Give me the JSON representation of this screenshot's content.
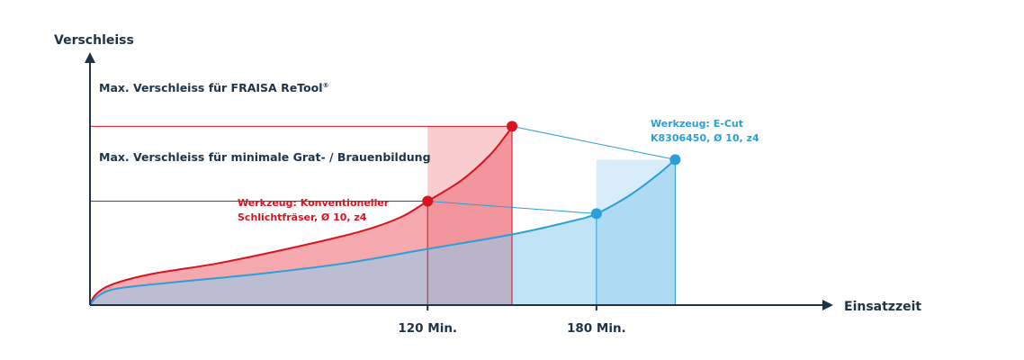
{
  "chart_data": {
    "type": "area",
    "ylabel": "Verschleiss",
    "xlabel": "Einsatzzeit",
    "x_ticks": [
      "120 Min.",
      "180 Min."
    ],
    "reference_lines": [
      {
        "label": "Max. Verschleiss für FRAISA ReTool",
        "sup": "®",
        "level": 1.0
      },
      {
        "label": "Max. Verschleiss für minimale Grat- / Brauenbildung",
        "level": 0.66
      }
    ],
    "series": [
      {
        "name_lines": [
          "Werkzeug: Konventioneller",
          "Schlichtfräser, Ø 10, z4"
        ],
        "color": "#d7141f",
        "fill_color": "#ee6f79",
        "points": [
          {
            "x": 0,
            "y": 0.0
          },
          {
            "x": 2,
            "y": 0.05
          },
          {
            "x": 8,
            "y": 0.1
          },
          {
            "x": 22,
            "y": 0.15
          },
          {
            "x": 45,
            "y": 0.2
          },
          {
            "x": 70,
            "y": 0.27
          },
          {
            "x": 95,
            "y": 0.35
          },
          {
            "x": 110,
            "y": 0.42
          },
          {
            "x": 120,
            "y": 0.5
          },
          {
            "x": 132,
            "y": 0.6
          },
          {
            "x": 142,
            "y": 0.72
          },
          {
            "x": 148,
            "y": 0.82
          },
          {
            "x": 150,
            "y": 0.86
          }
        ],
        "markers": [
          {
            "x": 120,
            "y": 0.5
          },
          {
            "x": 150,
            "y": 0.86
          }
        ]
      },
      {
        "name_lines": [
          "Werkzeug: E-Cut",
          "K8306450, Ø 10, z4"
        ],
        "color": "#2a9fd8",
        "fill_color": "#8dccee",
        "points": [
          {
            "x": 0,
            "y": 0.0
          },
          {
            "x": 3,
            "y": 0.045
          },
          {
            "x": 10,
            "y": 0.08
          },
          {
            "x": 30,
            "y": 0.11
          },
          {
            "x": 60,
            "y": 0.15
          },
          {
            "x": 90,
            "y": 0.2
          },
          {
            "x": 120,
            "y": 0.27
          },
          {
            "x": 150,
            "y": 0.34
          },
          {
            "x": 170,
            "y": 0.4
          },
          {
            "x": 180,
            "y": 0.44
          },
          {
            "x": 192,
            "y": 0.53
          },
          {
            "x": 202,
            "y": 0.63
          },
          {
            "x": 208,
            "y": 0.7
          }
        ],
        "markers": [
          {
            "x": 180,
            "y": 0.44
          },
          {
            "x": 208,
            "y": 0.7
          }
        ]
      }
    ],
    "xlim": [
      0,
      260
    ],
    "ylim": [
      0,
      1.1
    ],
    "grid": false
  }
}
